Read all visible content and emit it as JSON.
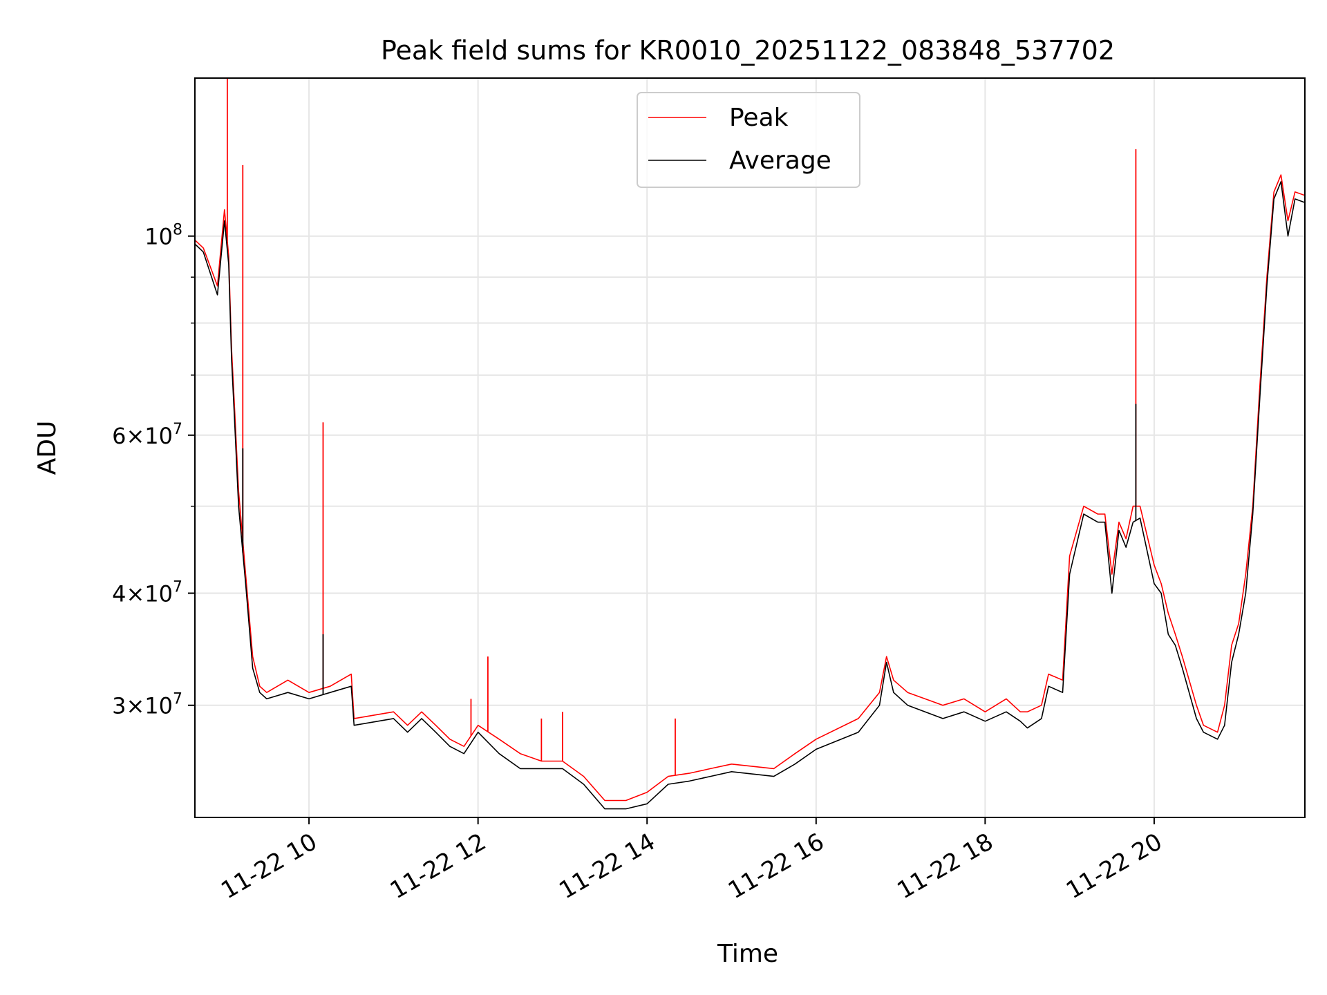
{
  "chart_data": {
    "type": "line",
    "title": "Peak field sums for KR0010_20251122_083848_537702",
    "xlabel": "Time",
    "ylabel": "ADU",
    "y_scale": "log",
    "ylim": [
      22500000,
      150000000
    ],
    "xlim": [
      "2025-11-22T08:39",
      "2025-11-22T21:47"
    ],
    "grid": true,
    "legend_position": "upper center",
    "x_ticks": [
      {
        "value": "2025-11-22T10:00",
        "label": "11-22 10"
      },
      {
        "value": "2025-11-22T12:00",
        "label": "11-22 12"
      },
      {
        "value": "2025-11-22T14:00",
        "label": "11-22 14"
      },
      {
        "value": "2025-11-22T16:00",
        "label": "11-22 16"
      },
      {
        "value": "2025-11-22T18:00",
        "label": "11-22 18"
      },
      {
        "value": "2025-11-22T20:00",
        "label": "11-22 20"
      }
    ],
    "y_ticks": [
      {
        "value": 30000000,
        "label_mantissa": "3",
        "label_base": "10",
        "label_exp": "7"
      },
      {
        "value": 40000000,
        "label_mantissa": "4",
        "label_base": "10",
        "label_exp": "7"
      },
      {
        "value": 60000000,
        "label_mantissa": "6",
        "label_base": "10",
        "label_exp": "7"
      },
      {
        "value": 100000000,
        "label_mantissa": "",
        "label_base": "10",
        "label_exp": "8"
      }
    ],
    "y_minor_ticks": [
      50000000,
      70000000,
      80000000,
      90000000
    ],
    "series": [
      {
        "name": "Peak",
        "color": "#ff0000",
        "x": [
          "2025-11-22T08:39",
          "2025-11-22T08:45",
          "2025-11-22T08:55",
          "2025-11-22T09:00",
          "2025-11-22T09:03",
          "2025-11-22T09:05",
          "2025-11-22T09:07",
          "2025-11-22T09:10",
          "2025-11-22T09:15",
          "2025-11-22T09:20",
          "2025-11-22T09:25",
          "2025-11-22T09:30",
          "2025-11-22T09:45",
          "2025-11-22T10:00",
          "2025-11-22T10:15",
          "2025-11-22T10:30",
          "2025-11-22T10:32",
          "2025-11-22T11:00",
          "2025-11-22T11:10",
          "2025-11-22T11:20",
          "2025-11-22T11:30",
          "2025-11-22T11:40",
          "2025-11-22T11:50",
          "2025-11-22T12:00",
          "2025-11-22T12:15",
          "2025-11-22T12:30",
          "2025-11-22T12:45",
          "2025-11-22T13:00",
          "2025-11-22T13:15",
          "2025-11-22T13:30",
          "2025-11-22T13:45",
          "2025-11-22T14:00",
          "2025-11-22T14:15",
          "2025-11-22T14:30",
          "2025-11-22T14:45",
          "2025-11-22T15:00",
          "2025-11-22T15:30",
          "2025-11-22T15:45",
          "2025-11-22T16:00",
          "2025-11-22T16:30",
          "2025-11-22T16:45",
          "2025-11-22T16:50",
          "2025-11-22T16:55",
          "2025-11-22T17:05",
          "2025-11-22T17:30",
          "2025-11-22T17:45",
          "2025-11-22T18:00",
          "2025-11-22T18:15",
          "2025-11-22T18:25",
          "2025-11-22T18:30",
          "2025-11-22T18:40",
          "2025-11-22T18:45",
          "2025-11-22T18:55",
          "2025-11-22T19:00",
          "2025-11-22T19:10",
          "2025-11-22T19:20",
          "2025-11-22T19:25",
          "2025-11-22T19:30",
          "2025-11-22T19:35",
          "2025-11-22T19:40",
          "2025-11-22T19:45",
          "2025-11-22T19:50",
          "2025-11-22T20:00",
          "2025-11-22T20:05",
          "2025-11-22T20:10",
          "2025-11-22T20:15",
          "2025-11-22T20:20",
          "2025-11-22T20:30",
          "2025-11-22T20:35",
          "2025-11-22T20:45",
          "2025-11-22T20:50",
          "2025-11-22T20:55",
          "2025-11-22T21:00",
          "2025-11-22T21:05",
          "2025-11-22T21:10",
          "2025-11-22T21:15",
          "2025-11-22T21:20",
          "2025-11-22T21:25",
          "2025-11-22T21:30",
          "2025-11-22T21:35",
          "2025-11-22T21:40",
          "2025-11-22T21:47"
        ],
        "values": [
          99000000,
          97000000,
          88000000,
          107000000,
          95000000,
          75000000,
          65000000,
          52000000,
          42000000,
          34000000,
          31500000,
          31000000,
          32000000,
          31000000,
          31500000,
          32500000,
          29000000,
          29500000,
          28500000,
          29500000,
          28500000,
          27500000,
          27000000,
          28500000,
          27500000,
          26500000,
          26000000,
          26000000,
          25000000,
          23500000,
          23500000,
          24000000,
          25000000,
          25200000,
          25500000,
          25800000,
          25500000,
          26500000,
          27500000,
          29000000,
          31000000,
          34000000,
          32000000,
          31000000,
          30000000,
          30500000,
          29500000,
          30500000,
          29500000,
          29500000,
          30000000,
          32500000,
          32000000,
          44000000,
          50000000,
          49000000,
          49000000,
          42000000,
          48000000,
          46000000,
          50000000,
          50000000,
          43000000,
          41000000,
          38000000,
          36000000,
          34000000,
          30000000,
          28500000,
          28000000,
          30000000,
          35000000,
          37000000,
          42000000,
          50000000,
          68000000,
          90000000,
          112000000,
          117000000,
          104000000,
          112000000,
          111000000
        ]
      },
      {
        "name": "Average",
        "color": "#000000",
        "x": [
          "2025-11-22T08:39",
          "2025-11-22T08:45",
          "2025-11-22T08:55",
          "2025-11-22T09:00",
          "2025-11-22T09:03",
          "2025-11-22T09:05",
          "2025-11-22T09:07",
          "2025-11-22T09:10",
          "2025-11-22T09:15",
          "2025-11-22T09:20",
          "2025-11-22T09:25",
          "2025-11-22T09:30",
          "2025-11-22T09:45",
          "2025-11-22T10:00",
          "2025-11-22T10:15",
          "2025-11-22T10:30",
          "2025-11-22T10:32",
          "2025-11-22T11:00",
          "2025-11-22T11:10",
          "2025-11-22T11:20",
          "2025-11-22T11:30",
          "2025-11-22T11:40",
          "2025-11-22T11:50",
          "2025-11-22T12:00",
          "2025-11-22T12:15",
          "2025-11-22T12:30",
          "2025-11-22T12:45",
          "2025-11-22T13:00",
          "2025-11-22T13:15",
          "2025-11-22T13:30",
          "2025-11-22T13:45",
          "2025-11-22T14:00",
          "2025-11-22T14:15",
          "2025-11-22T14:30",
          "2025-11-22T14:45",
          "2025-11-22T15:00",
          "2025-11-22T15:30",
          "2025-11-22T15:45",
          "2025-11-22T16:00",
          "2025-11-22T16:30",
          "2025-11-22T16:45",
          "2025-11-22T16:50",
          "2025-11-22T16:55",
          "2025-11-22T17:05",
          "2025-11-22T17:30",
          "2025-11-22T17:45",
          "2025-11-22T18:00",
          "2025-11-22T18:15",
          "2025-11-22T18:25",
          "2025-11-22T18:30",
          "2025-11-22T18:40",
          "2025-11-22T18:45",
          "2025-11-22T18:55",
          "2025-11-22T19:00",
          "2025-11-22T19:10",
          "2025-11-22T19:20",
          "2025-11-22T19:25",
          "2025-11-22T19:30",
          "2025-11-22T19:35",
          "2025-11-22T19:40",
          "2025-11-22T19:45",
          "2025-11-22T19:50",
          "2025-11-22T20:00",
          "2025-11-22T20:05",
          "2025-11-22T20:10",
          "2025-11-22T20:15",
          "2025-11-22T20:20",
          "2025-11-22T20:30",
          "2025-11-22T20:35",
          "2025-11-22T20:45",
          "2025-11-22T20:50",
          "2025-11-22T20:55",
          "2025-11-22T21:00",
          "2025-11-22T21:05",
          "2025-11-22T21:10",
          "2025-11-22T21:15",
          "2025-11-22T21:20",
          "2025-11-22T21:25",
          "2025-11-22T21:30",
          "2025-11-22T21:35",
          "2025-11-22T21:40",
          "2025-11-22T21:47"
        ],
        "values": [
          98000000,
          96000000,
          86000000,
          104000000,
          93000000,
          73000000,
          63000000,
          50000000,
          41000000,
          33000000,
          31000000,
          30500000,
          31000000,
          30500000,
          31000000,
          31500000,
          28500000,
          29000000,
          28000000,
          29000000,
          28000000,
          27000000,
          26500000,
          28000000,
          26500000,
          25500000,
          25500000,
          25500000,
          24500000,
          23000000,
          23000000,
          23300000,
          24500000,
          24700000,
          25000000,
          25300000,
          25000000,
          25800000,
          26800000,
          28000000,
          30000000,
          33500000,
          31000000,
          30000000,
          29000000,
          29500000,
          28800000,
          29500000,
          28800000,
          28300000,
          29000000,
          31500000,
          31000000,
          42000000,
          49000000,
          48000000,
          48000000,
          40000000,
          47000000,
          45000000,
          48000000,
          48500000,
          41000000,
          40000000,
          36000000,
          35000000,
          33000000,
          29000000,
          28000000,
          27500000,
          28500000,
          33500000,
          36000000,
          40000000,
          49000000,
          66000000,
          88000000,
          110000000,
          115000000,
          100000000,
          110000000,
          109000000
        ]
      }
    ],
    "spikes": [
      {
        "series": "Peak",
        "x": "2025-11-22T09:02",
        "value": 150000000
      },
      {
        "series": "Peak",
        "x": "2025-11-22T09:13",
        "value": 120000000
      },
      {
        "series": "Average",
        "x": "2025-11-22T09:13",
        "value": 58000000
      },
      {
        "series": "Peak",
        "x": "2025-11-22T10:10",
        "value": 62000000
      },
      {
        "series": "Average",
        "x": "2025-11-22T10:10",
        "value": 36000000
      },
      {
        "series": "Peak",
        "x": "2025-11-22T11:55",
        "value": 30500000
      },
      {
        "series": "Peak",
        "x": "2025-11-22T12:07",
        "value": 34000000
      },
      {
        "series": "Peak",
        "x": "2025-11-22T12:45",
        "value": 29000000
      },
      {
        "series": "Peak",
        "x": "2025-11-22T13:00",
        "value": 29500000
      },
      {
        "series": "Peak",
        "x": "2025-11-22T14:20",
        "value": 29000000
      },
      {
        "series": "Peak",
        "x": "2025-11-22T19:47",
        "value": 125000000
      },
      {
        "series": "Average",
        "x": "2025-11-22T19:47",
        "value": 65000000
      }
    ]
  }
}
